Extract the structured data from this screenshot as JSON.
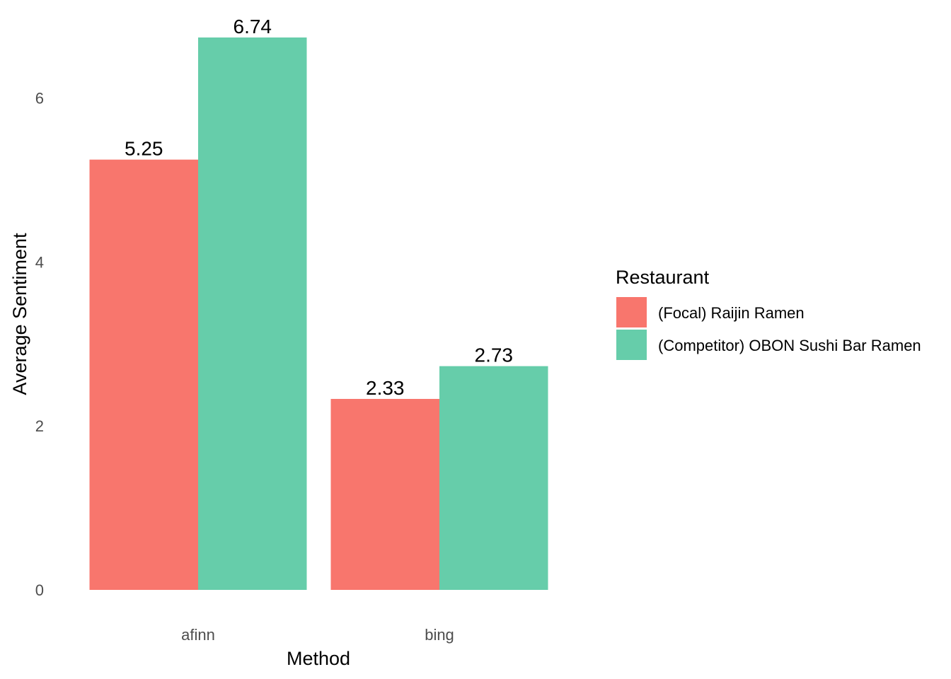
{
  "chart_data": {
    "type": "bar",
    "categories": [
      "afinn",
      "bing"
    ],
    "series": [
      {
        "name": "(Focal) Raijin Ramen",
        "values": [
          5.25,
          2.33
        ],
        "color": "#F8766D"
      },
      {
        "name": "(Competitor) OBON Sushi Bar Ramen",
        "values": [
          6.74,
          2.73
        ],
        "color": "#66CDAA"
      }
    ],
    "data_labels": [
      [
        "5.25",
        "2.33"
      ],
      [
        "6.74",
        "2.73"
      ]
    ],
    "xlabel": "Method",
    "ylabel": "Average Sentiment",
    "ylim": [
      0,
      6.74
    ],
    "yticks": [
      0,
      2,
      4,
      6
    ],
    "grid": false,
    "legend": {
      "title": "Restaurant",
      "position": "right"
    }
  }
}
